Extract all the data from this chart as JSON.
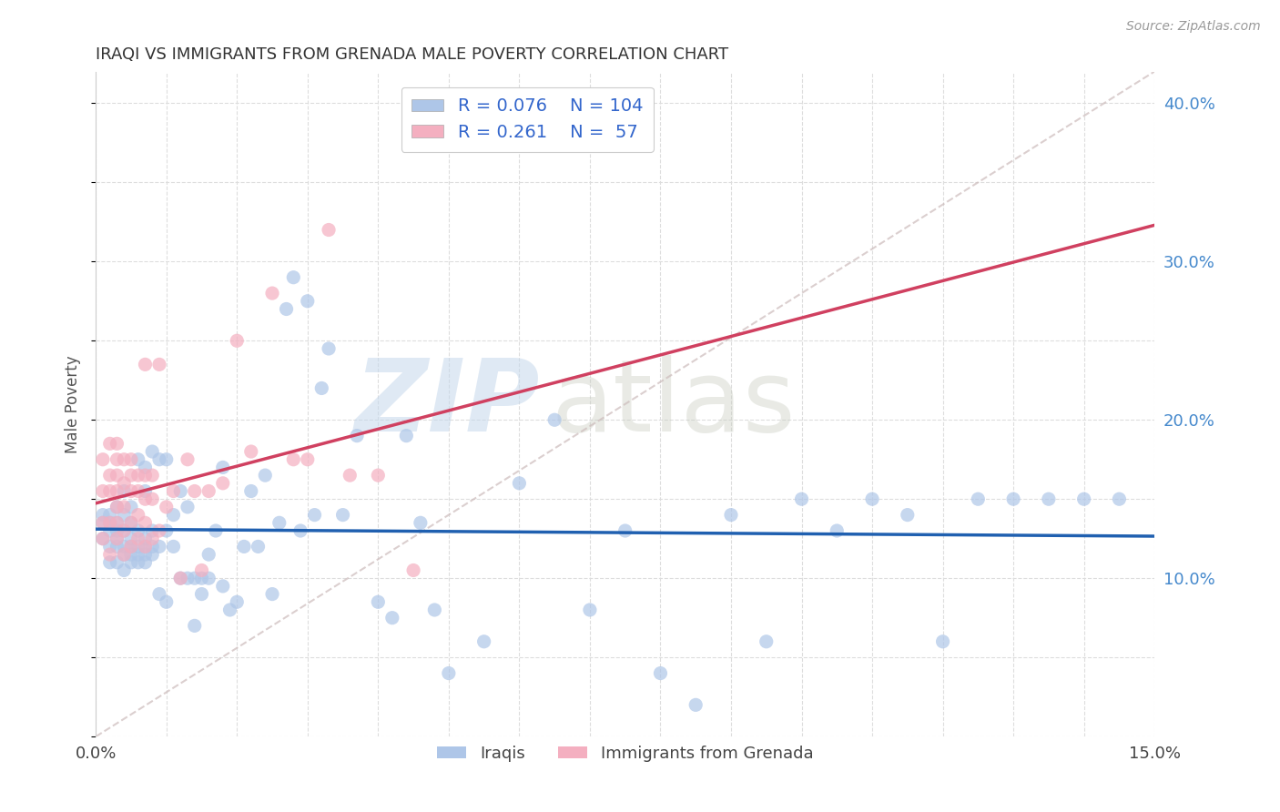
{
  "title": "IRAQI VS IMMIGRANTS FROM GRENADA MALE POVERTY CORRELATION CHART",
  "source": "Source: ZipAtlas.com",
  "ylabel": "Male Poverty",
  "xlim": [
    0.0,
    0.15
  ],
  "ylim": [
    0.0,
    0.42
  ],
  "color_iraqi": "#aec6e8",
  "color_grenada": "#f4afc0",
  "color_line_iraqi": "#2060b0",
  "color_line_grenada": "#d04060",
  "color_line_dashed": "#c8b8b8",
  "watermark_zip": "ZIP",
  "watermark_atlas": "atlas",
  "iraqi_x": [
    0.001,
    0.001,
    0.001,
    0.002,
    0.002,
    0.002,
    0.002,
    0.002,
    0.003,
    0.003,
    0.003,
    0.003,
    0.003,
    0.003,
    0.004,
    0.004,
    0.004,
    0.004,
    0.004,
    0.004,
    0.005,
    0.005,
    0.005,
    0.005,
    0.005,
    0.005,
    0.006,
    0.006,
    0.006,
    0.006,
    0.006,
    0.007,
    0.007,
    0.007,
    0.007,
    0.007,
    0.007,
    0.008,
    0.008,
    0.008,
    0.008,
    0.009,
    0.009,
    0.009,
    0.01,
    0.01,
    0.01,
    0.011,
    0.011,
    0.012,
    0.012,
    0.013,
    0.013,
    0.014,
    0.014,
    0.015,
    0.015,
    0.016,
    0.016,
    0.017,
    0.018,
    0.018,
    0.019,
    0.02,
    0.021,
    0.022,
    0.023,
    0.024,
    0.025,
    0.026,
    0.027,
    0.028,
    0.029,
    0.03,
    0.031,
    0.032,
    0.033,
    0.035,
    0.037,
    0.04,
    0.042,
    0.044,
    0.046,
    0.048,
    0.05,
    0.055,
    0.06,
    0.065,
    0.07,
    0.075,
    0.08,
    0.085,
    0.09,
    0.095,
    0.1,
    0.105,
    0.11,
    0.115,
    0.12,
    0.125,
    0.13,
    0.135,
    0.14,
    0.145
  ],
  "iraqi_y": [
    0.125,
    0.135,
    0.14,
    0.11,
    0.12,
    0.13,
    0.135,
    0.14,
    0.11,
    0.12,
    0.125,
    0.13,
    0.135,
    0.145,
    0.105,
    0.115,
    0.12,
    0.13,
    0.14,
    0.155,
    0.11,
    0.115,
    0.12,
    0.125,
    0.135,
    0.145,
    0.11,
    0.115,
    0.12,
    0.13,
    0.175,
    0.11,
    0.115,
    0.12,
    0.125,
    0.155,
    0.17,
    0.115,
    0.12,
    0.13,
    0.18,
    0.09,
    0.12,
    0.175,
    0.085,
    0.13,
    0.175,
    0.12,
    0.14,
    0.1,
    0.155,
    0.1,
    0.145,
    0.07,
    0.1,
    0.09,
    0.1,
    0.1,
    0.115,
    0.13,
    0.095,
    0.17,
    0.08,
    0.085,
    0.12,
    0.155,
    0.12,
    0.165,
    0.09,
    0.135,
    0.27,
    0.29,
    0.13,
    0.275,
    0.14,
    0.22,
    0.245,
    0.14,
    0.19,
    0.085,
    0.075,
    0.19,
    0.135,
    0.08,
    0.04,
    0.06,
    0.16,
    0.2,
    0.08,
    0.13,
    0.04,
    0.02,
    0.14,
    0.06,
    0.15,
    0.13,
    0.15,
    0.14,
    0.06,
    0.15,
    0.15,
    0.15,
    0.15,
    0.15
  ],
  "grenada_x": [
    0.001,
    0.001,
    0.001,
    0.001,
    0.002,
    0.002,
    0.002,
    0.002,
    0.002,
    0.003,
    0.003,
    0.003,
    0.003,
    0.003,
    0.003,
    0.003,
    0.004,
    0.004,
    0.004,
    0.004,
    0.004,
    0.005,
    0.005,
    0.005,
    0.005,
    0.005,
    0.006,
    0.006,
    0.006,
    0.006,
    0.007,
    0.007,
    0.007,
    0.007,
    0.007,
    0.008,
    0.008,
    0.008,
    0.009,
    0.009,
    0.01,
    0.011,
    0.012,
    0.013,
    0.014,
    0.015,
    0.016,
    0.018,
    0.02,
    0.022,
    0.025,
    0.028,
    0.03,
    0.033,
    0.036,
    0.04,
    0.045
  ],
  "grenada_y": [
    0.125,
    0.135,
    0.155,
    0.175,
    0.115,
    0.135,
    0.155,
    0.165,
    0.185,
    0.125,
    0.135,
    0.145,
    0.155,
    0.165,
    0.175,
    0.185,
    0.115,
    0.13,
    0.145,
    0.16,
    0.175,
    0.12,
    0.135,
    0.155,
    0.165,
    0.175,
    0.125,
    0.14,
    0.155,
    0.165,
    0.12,
    0.135,
    0.15,
    0.165,
    0.235,
    0.125,
    0.15,
    0.165,
    0.13,
    0.235,
    0.145,
    0.155,
    0.1,
    0.175,
    0.155,
    0.105,
    0.155,
    0.16,
    0.25,
    0.18,
    0.28,
    0.175,
    0.175,
    0.32,
    0.165,
    0.165,
    0.105
  ],
  "legend_r1": "0.076",
  "legend_n1": "104",
  "legend_r2": "0.261",
  "legend_n2": "57"
}
